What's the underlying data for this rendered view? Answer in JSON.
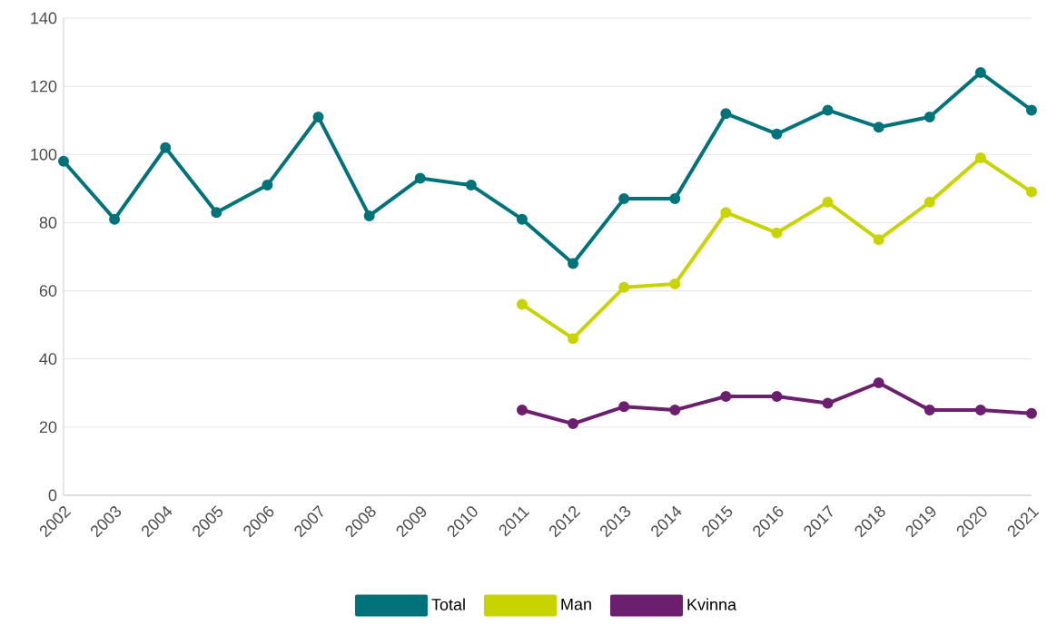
{
  "chart_data": {
    "type": "line",
    "categories": [
      "2002",
      "2003",
      "2004",
      "2005",
      "2006",
      "2007",
      "2008",
      "2009",
      "2010",
      "2011",
      "2012",
      "2013",
      "2014",
      "2015",
      "2016",
      "2017",
      "2018",
      "2019",
      "2020",
      "2021"
    ],
    "series": [
      {
        "name": "Total",
        "color": "#00737a",
        "values": [
          98,
          81,
          102,
          83,
          91,
          111,
          82,
          93,
          91,
          81,
          68,
          87,
          87,
          112,
          106,
          113,
          108,
          111,
          124,
          113
        ]
      },
      {
        "name": "Man",
        "color": "#c8d400",
        "values": [
          null,
          null,
          null,
          null,
          null,
          null,
          null,
          null,
          null,
          56,
          46,
          61,
          62,
          83,
          77,
          86,
          75,
          86,
          99,
          89
        ]
      },
      {
        "name": "Kvinna",
        "color": "#6b1f6e",
        "values": [
          null,
          null,
          null,
          null,
          null,
          null,
          null,
          null,
          null,
          25,
          21,
          26,
          25,
          29,
          29,
          27,
          33,
          25,
          25,
          24
        ]
      }
    ],
    "ylim": [
      0,
      140
    ],
    "yticks": [
      0,
      20,
      40,
      60,
      80,
      100,
      120,
      140
    ],
    "grid": "y",
    "legend": "bottom",
    "marker": "circle",
    "line_style": "solid"
  }
}
